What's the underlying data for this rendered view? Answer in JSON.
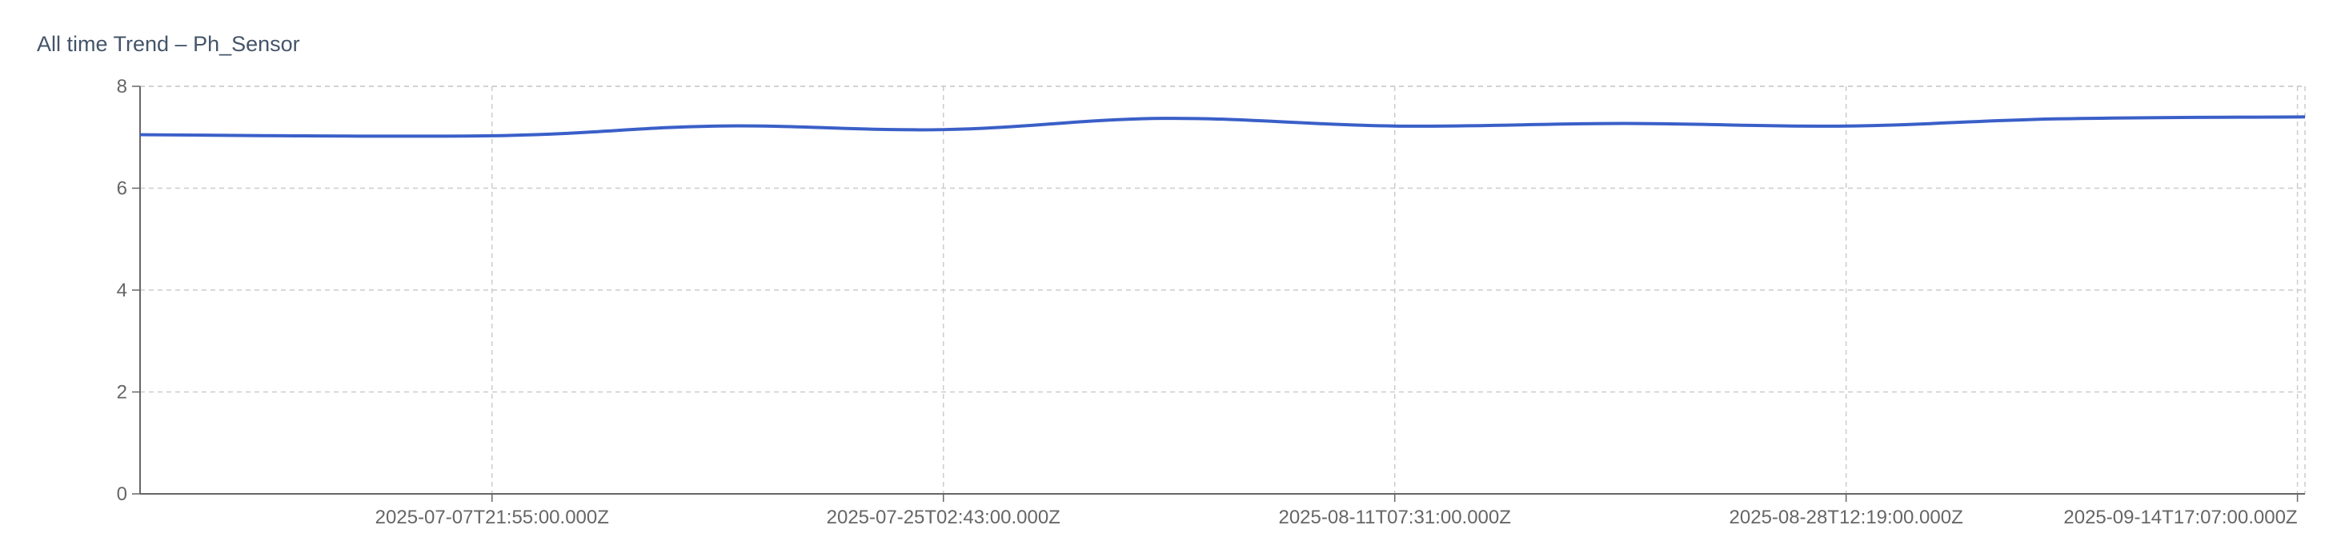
{
  "chart_data": {
    "type": "line",
    "title": "All time Trend – Ph_Sensor",
    "xlabel": "",
    "ylabel": "",
    "ylim": [
      0,
      8
    ],
    "xlim": [
      "2025-06-24T12:00:00.000Z",
      "2025-09-15T00:00:00.000Z"
    ],
    "y_ticks": [
      "0",
      "2",
      "4",
      "6",
      "8"
    ],
    "x_ticks": [
      {
        "label": "2025-07-07T21:55:00.000Z",
        "x": "2025-07-07T21:55:00.000Z"
      },
      {
        "label": "2025-07-25T02:43:00.000Z",
        "x": "2025-07-25T02:43:00.000Z"
      },
      {
        "label": "2025-08-11T07:31:00.000Z",
        "x": "2025-08-11T07:31:00.000Z"
      },
      {
        "label": "2025-08-28T12:19:00.000Z",
        "x": "2025-08-28T12:19:00.000Z"
      },
      {
        "label": "2025-09-14T17:07:00.000Z",
        "x": "2025-09-14T17:07:00.000Z"
      }
    ],
    "grid": true,
    "series": [
      {
        "color": "#3a5fc8",
        "points": [
          {
            "x": "2025-06-24T12:00:00.000Z",
            "y": 7.05
          },
          {
            "x": "2025-07-07T21:55:00.000Z",
            "y": 7.03
          },
          {
            "x": "2025-07-16T12:00:00.000Z",
            "y": 7.22
          },
          {
            "x": "2025-07-25T02:43:00.000Z",
            "y": 7.15
          },
          {
            "x": "2025-08-02T12:00:00.000Z",
            "y": 7.37
          },
          {
            "x": "2025-08-11T07:31:00.000Z",
            "y": 7.22
          },
          {
            "x": "2025-08-20T00:00:00.000Z",
            "y": 7.27
          },
          {
            "x": "2025-08-28T12:19:00.000Z",
            "y": 7.22
          },
          {
            "x": "2025-09-05T12:00:00.000Z",
            "y": 7.36
          },
          {
            "x": "2025-09-15T00:00:00.000Z",
            "y": 7.4
          }
        ]
      }
    ]
  }
}
